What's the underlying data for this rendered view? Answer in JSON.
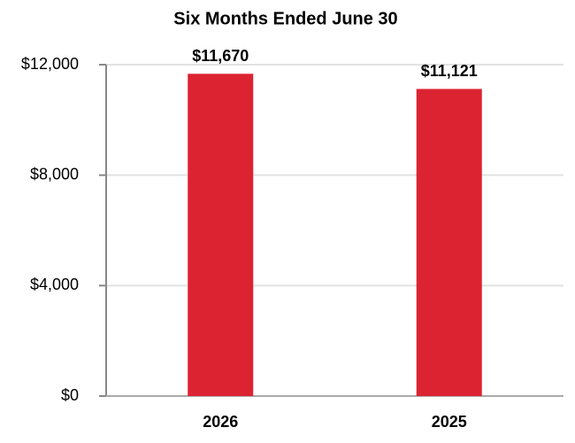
{
  "chart_data": {
    "type": "bar",
    "title": "Six Months Ended June 30",
    "categories": [
      "2026",
      "2025"
    ],
    "values": [
      11670,
      11121
    ],
    "value_labels": [
      "$11,670",
      "$11,121"
    ],
    "color": "#dc2332",
    "ylim": [
      0,
      12000
    ],
    "yticks": [
      {
        "value": 0,
        "label": "$0"
      },
      {
        "value": 4000,
        "label": "$4,000"
      },
      {
        "value": 8000,
        "label": "$8,000"
      },
      {
        "value": 12000,
        "label": "$12,000"
      }
    ],
    "grid": true
  }
}
